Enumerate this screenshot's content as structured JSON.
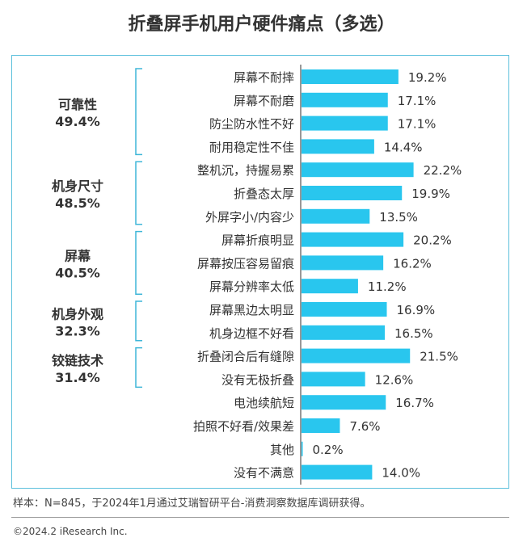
{
  "chart_data": {
    "type": "bar",
    "title": "折叠屏手机用户硬件痛点（多选）",
    "categories": [
      "屏幕不耐摔",
      "屏幕不耐磨",
      "防尘防水性不好",
      "耐用稳定性不佳",
      "整机沉，持握易累",
      "折叠态太厚",
      "外屏字小/内容少",
      "屏幕折痕明显",
      "屏幕按压容易留痕",
      "屏幕分辨率太低",
      "屏幕黑边太明显",
      "机身边框不好看",
      "折叠闭合后有缝隙",
      "没有无极折叠",
      "电池续航短",
      "拍照不好看/效果差",
      "其他",
      "没有不满意"
    ],
    "values": [
      19.2,
      17.1,
      17.1,
      14.4,
      22.2,
      19.9,
      13.5,
      20.2,
      16.2,
      11.2,
      16.9,
      16.5,
      21.5,
      12.6,
      16.7,
      7.6,
      0.2,
      14.0
    ],
    "value_labels": [
      "19.2%",
      "17.1%",
      "17.1%",
      "14.4%",
      "22.2%",
      "19.9%",
      "13.5%",
      "20.2%",
      "16.2%",
      "11.2%",
      "16.9%",
      "16.5%",
      "21.5%",
      "12.6%",
      "16.7%",
      "7.6%",
      "0.2%",
      "14.0%"
    ],
    "groups": [
      {
        "name": "可靠性",
        "value": "49.4%",
        "start": 0,
        "end": 3
      },
      {
        "name": "机身尺寸",
        "value": "48.5%",
        "start": 4,
        "end": 6
      },
      {
        "name": "屏幕",
        "value": "40.5%",
        "start": 7,
        "end": 9
      },
      {
        "name": "机身外观",
        "value": "32.3%",
        "start": 10,
        "end": 11
      },
      {
        "name": "铰链技术",
        "value": "31.4%",
        "start": 12,
        "end": 13
      }
    ],
    "xlim": [
      0,
      25
    ],
    "bar_color": "#29c6ee",
    "bracket_color": "#3fb6d8"
  },
  "footnote": "样本：N=845，于2024年1月通过艾瑞智研平台-消费洞察数据库调研获得。",
  "copyright": "©2024.2 iResearch Inc."
}
